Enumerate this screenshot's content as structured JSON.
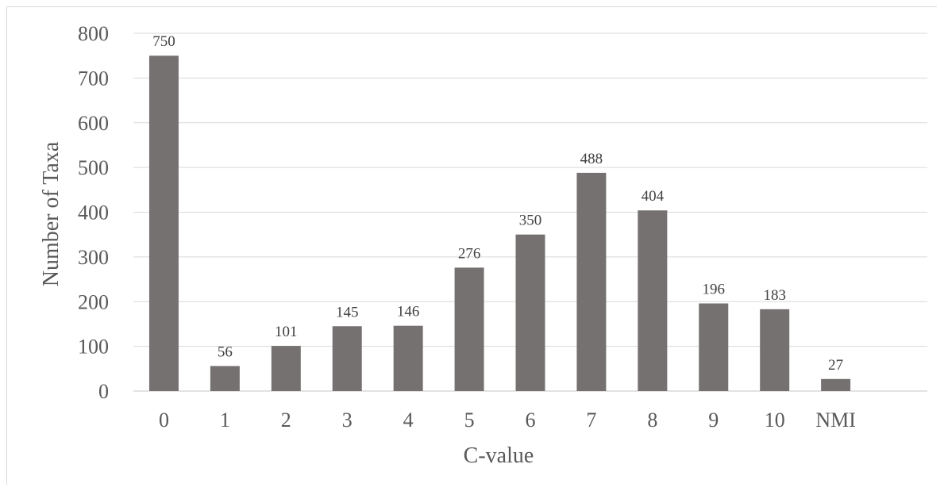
{
  "chart_data": {
    "type": "bar",
    "title": "",
    "xlabel": "C-value",
    "ylabel": "Number of Taxa",
    "categories": [
      "0",
      "1",
      "2",
      "3",
      "4",
      "5",
      "6",
      "7",
      "8",
      "9",
      "10",
      "NMI"
    ],
    "values": [
      750,
      56,
      101,
      145,
      146,
      276,
      350,
      488,
      404,
      196,
      183,
      27
    ],
    "data_labels": [
      "750",
      "56",
      "101",
      "145",
      "146",
      "276",
      "350",
      "488",
      "404",
      "196",
      "183",
      "27"
    ],
    "ylim": [
      0,
      800
    ],
    "yticks": [
      0,
      100,
      200,
      300,
      400,
      500,
      600,
      700,
      800
    ],
    "ytick_labels": [
      "0",
      "100",
      "200",
      "300",
      "400",
      "500",
      "600",
      "700",
      "800"
    ],
    "grid": true,
    "legend": "none",
    "colors": {
      "bar": "#767171",
      "grid": "#d9d9d9",
      "text": "#595959"
    }
  }
}
